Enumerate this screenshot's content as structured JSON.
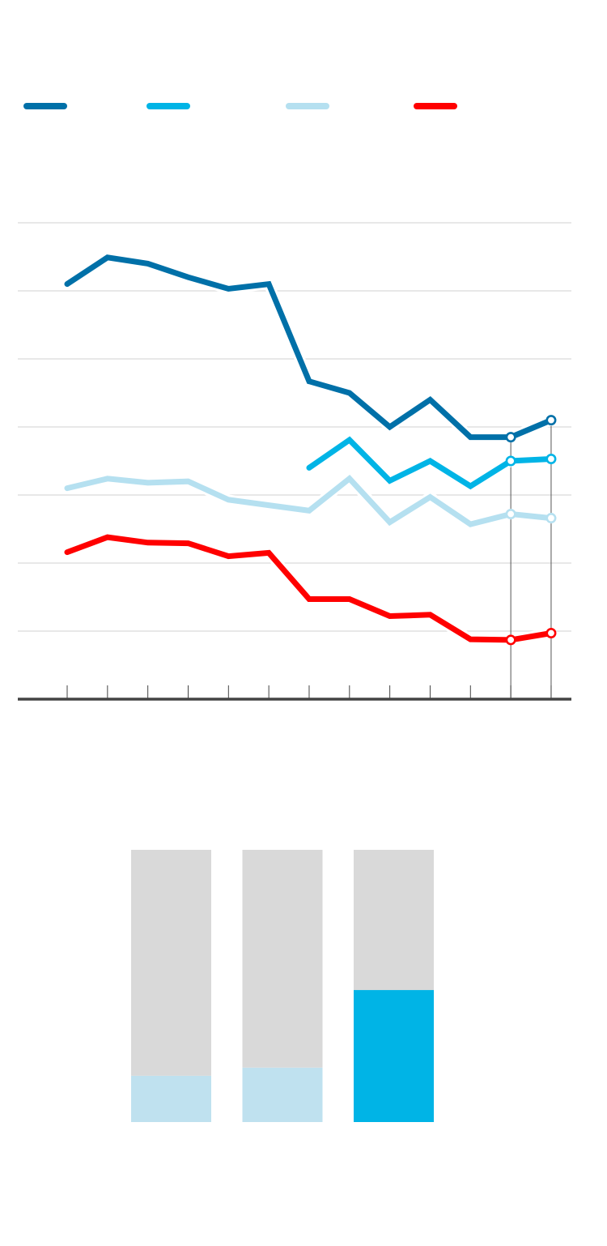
{
  "colors": {
    "background": "#ffffff",
    "grid": "#d9d9d9",
    "axis": "#444444",
    "bar_background": "#d9d9d9"
  },
  "chart_data": [
    {
      "type": "line",
      "title": "",
      "xlabel": "",
      "ylabel": "",
      "grid": true,
      "legend_placement": "top",
      "x": [
        1,
        2,
        3,
        4,
        5,
        6,
        7,
        8,
        9,
        10,
        11,
        12,
        13
      ],
      "ylim": [
        0,
        7
      ],
      "series": [
        {
          "color": "#0070a8",
          "values": [
            6.1,
            6.49,
            6.4,
            6.2,
            6.03,
            6.1,
            4.67,
            4.5,
            4.0,
            4.4,
            3.85,
            3.85,
            4.1
          ],
          "marker_points": [
            12,
            13
          ]
        },
        {
          "color": "#00b4e6",
          "values": [
            null,
            null,
            null,
            null,
            null,
            null,
            3.4,
            3.81,
            3.21,
            3.5,
            3.13,
            3.5,
            3.53
          ],
          "marker_points": [
            12,
            13
          ]
        },
        {
          "color": "#b5e0f0",
          "values": [
            3.1,
            3.24,
            3.18,
            3.2,
            2.93,
            2.85,
            2.77,
            3.24,
            2.6,
            2.97,
            2.57,
            2.72,
            2.66
          ],
          "marker_points": [
            12,
            13
          ]
        },
        {
          "color": "#ff0000",
          "values": [
            2.16,
            2.38,
            2.3,
            2.29,
            2.1,
            2.15,
            1.47,
            1.47,
            1.22,
            1.24,
            0.88,
            0.87,
            0.97
          ],
          "marker_points": [
            12,
            13
          ]
        }
      ]
    },
    {
      "type": "bar",
      "stacked": true,
      "title": "",
      "categories": [
        "",
        "",
        ""
      ],
      "ylim": [
        0,
        1
      ],
      "series": [
        {
          "values": [
            0.17,
            0.2,
            0.485
          ],
          "colors": [
            "#bfe1ef",
            "#bfe1ef",
            "#00b4e6"
          ]
        },
        {
          "values": [
            0.83,
            0.8,
            0.515
          ],
          "colors": [
            "#d9d9d9",
            "#d9d9d9",
            "#d9d9d9"
          ]
        }
      ]
    }
  ]
}
